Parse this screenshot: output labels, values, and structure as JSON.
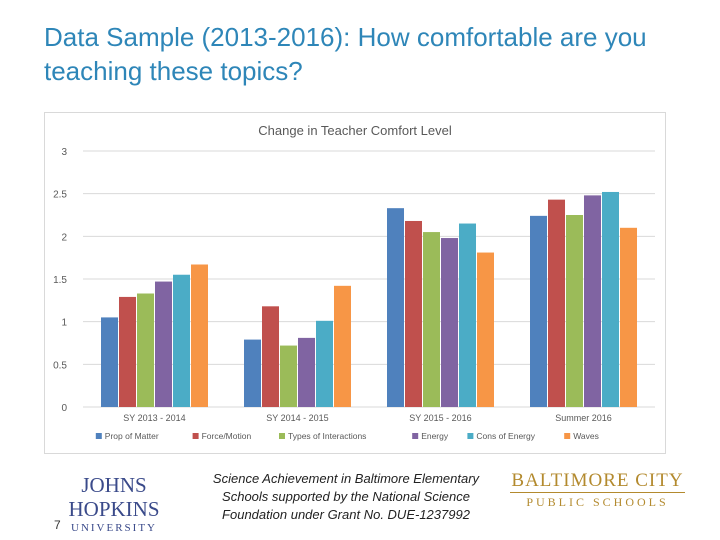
{
  "slide": {
    "title": "Data Sample (2013-2016): How comfortable are you teaching these topics?",
    "page_number": "7",
    "acknowledgement": "Science Achievement in Baltimore Elementary Schools supported by the National Science Foundation under Grant No. DUE-1237992",
    "logo_left": {
      "line1": "JOHNS HOPKINS",
      "line2": "UNIVERSITY"
    },
    "logo_right": {
      "line1": "BALTIMORE CITY",
      "line2": "PUBLIC SCHOOLS"
    }
  },
  "chart_data": {
    "type": "bar",
    "title": "Change in Teacher Comfort Level",
    "xlabel": "",
    "ylabel": "",
    "ylim": [
      0,
      3
    ],
    "yticks": [
      0,
      0.5,
      1,
      1.5,
      2,
      2.5,
      3
    ],
    "ytick_labels": [
      "0",
      "0.5",
      "1",
      "1.5",
      "2",
      "2.5",
      "3"
    ],
    "grid": true,
    "legend_position": "bottom",
    "categories": [
      "SY 2013 - 2014",
      "SY 2014 - 2015",
      "SY 2015 - 2016",
      "Summer 2016"
    ],
    "series": [
      {
        "name": "Prop of Matter",
        "color": "#4f81bd",
        "values": [
          1.05,
          0.79,
          2.33,
          2.24
        ]
      },
      {
        "name": "Force/Motion",
        "color": "#c0504d",
        "values": [
          1.29,
          1.18,
          2.18,
          2.43
        ]
      },
      {
        "name": "Types of Interactions",
        "color": "#9bbb59",
        "values": [
          1.33,
          0.72,
          2.05,
          2.25
        ]
      },
      {
        "name": "Energy",
        "color": "#8064a2",
        "values": [
          1.47,
          0.81,
          1.98,
          2.48
        ]
      },
      {
        "name": "Cons of Energy",
        "color": "#4bacc6",
        "values": [
          1.55,
          1.01,
          2.15,
          2.52
        ]
      },
      {
        "name": "Waves",
        "color": "#f79646",
        "values": [
          1.67,
          1.42,
          1.81,
          2.1
        ]
      }
    ]
  }
}
